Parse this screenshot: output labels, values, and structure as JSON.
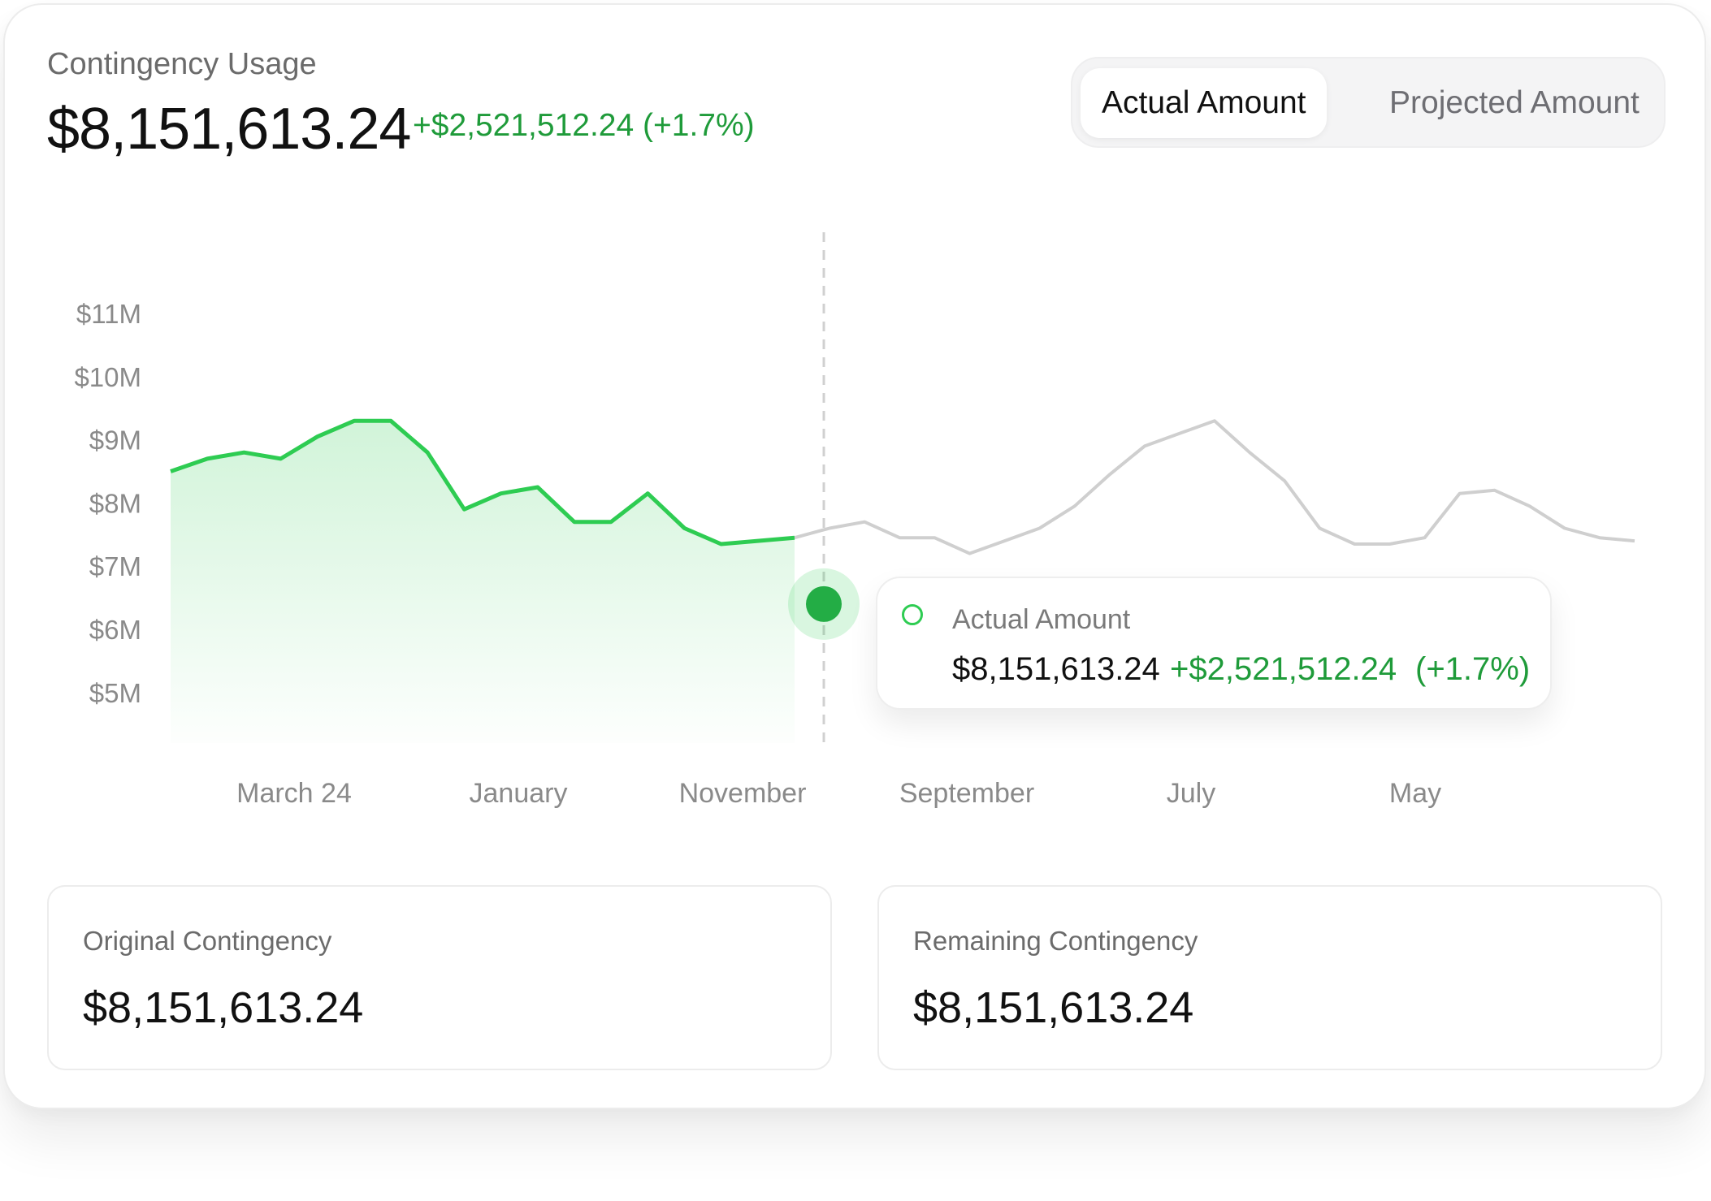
{
  "header": {
    "title": "Contingency Usage",
    "total": "$8,151,613.24",
    "delta": "+$2,521,512.24 (+1.7%)"
  },
  "toggle": {
    "actual_label": "Actual Amount",
    "projected_label": "Projected Amount",
    "selected": "Actual Amount"
  },
  "tooltip": {
    "label": "Actual Amount",
    "value": "$8,151,613.24",
    "delta": "+$2,521,512.24",
    "percent": "(+1.7%)"
  },
  "stats": {
    "original": {
      "label": "Original Contingency",
      "value": "$8,151,613.24"
    },
    "remaining": {
      "label": "Remaining Contingency",
      "value": "$8,151,613.24"
    }
  },
  "colors": {
    "actual": "#2ecc52",
    "projected": "#cfcfcf",
    "positive": "#1f9b3a"
  },
  "chart_data": {
    "type": "line",
    "title": "",
    "xlabel": "",
    "ylabel": "",
    "ylim": [
      4.2,
      11
    ],
    "y_ticks": [
      11,
      10,
      9,
      8,
      7,
      6,
      5
    ],
    "y_tick_labels": [
      "$11M",
      "$10M",
      "$9M",
      "$8M",
      "$7M",
      "$6M",
      "$5M"
    ],
    "x_tick_labels": [
      "March 24",
      "January",
      "November",
      "September",
      "July",
      "May"
    ],
    "grid": false,
    "legend": "none",
    "series": [
      {
        "values": [
          8.5,
          8.7,
          8.8,
          8.7,
          9.05,
          9.3,
          9.3,
          8.8,
          7.9,
          8.15,
          8.25,
          7.7,
          7.7,
          8.15,
          7.6,
          7.35,
          7.4,
          7.45
        ],
        "area": true
      },
      {
        "values": [
          7.45,
          7.6,
          7.7,
          7.45,
          7.45,
          7.2,
          7.4,
          7.6,
          7.95,
          8.45,
          8.9,
          9.1,
          9.3,
          8.8,
          8.35,
          7.6,
          7.35,
          7.35,
          7.45,
          8.15,
          8.2,
          7.95,
          7.6,
          7.45,
          7.4
        ]
      }
    ],
    "marker_value": 6.4
  }
}
